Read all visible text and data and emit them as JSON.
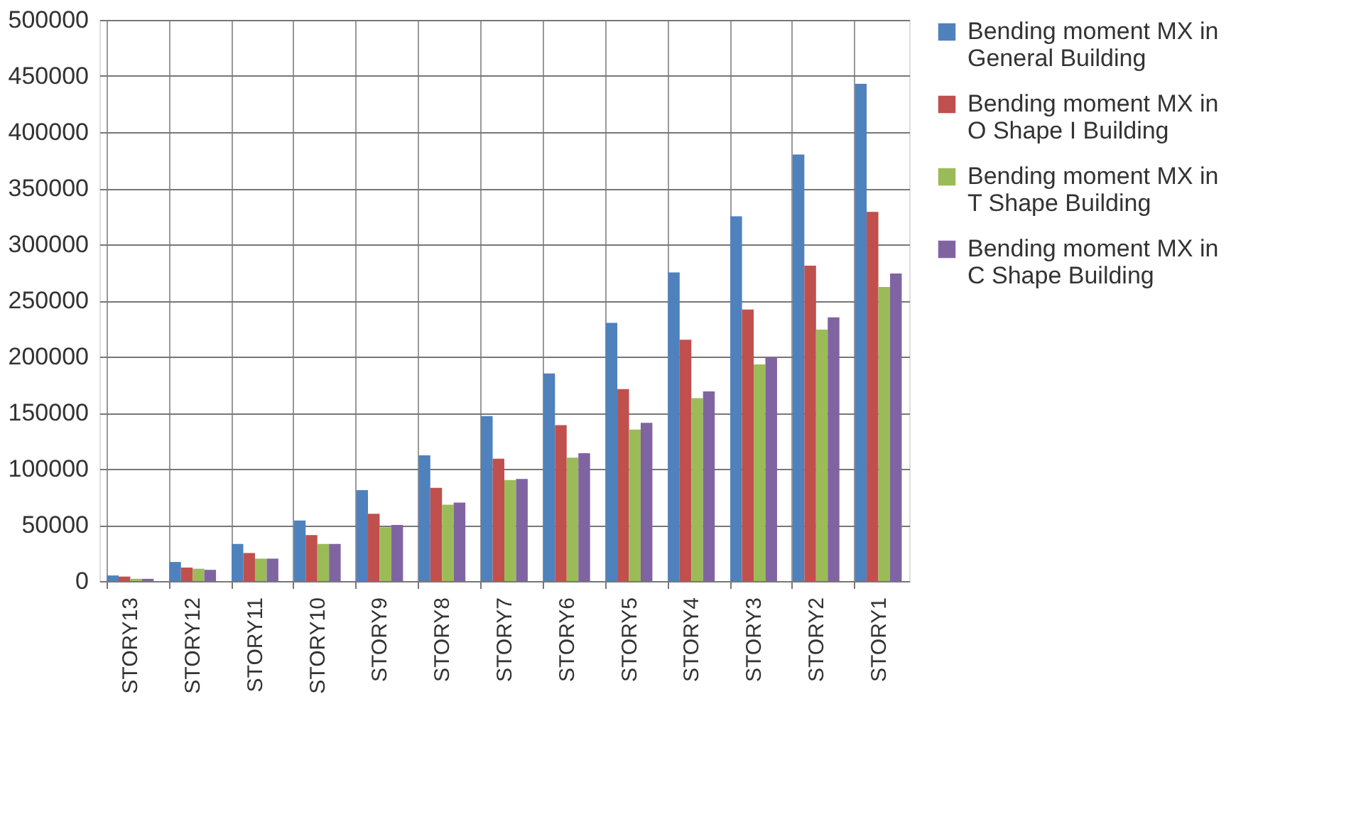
{
  "chart_data": {
    "type": "bar",
    "categories": [
      "STORY13",
      "STORY12",
      "STORY11",
      "STORY10",
      "STORY9",
      "STORY8",
      "STORY7",
      "STORY6",
      "STORY5",
      "STORY4",
      "STORY3",
      "STORY2",
      "STORY1"
    ],
    "series": [
      {
        "name": "Bending moment MX in General Building",
        "color": "#4f81bd",
        "values": [
          5000,
          17000,
          33000,
          54000,
          81000,
          112000,
          147000,
          185000,
          230000,
          275000,
          325000,
          380000,
          443000
        ]
      },
      {
        "name": "Bending moment MX in O Shape I Building",
        "color": "#c0504d",
        "values": [
          4000,
          12000,
          25000,
          41000,
          60000,
          83000,
          109000,
          139000,
          171000,
          215000,
          242000,
          281000,
          329000
        ]
      },
      {
        "name": "Bending moment MX in T Shape Building",
        "color": "#9bbb59",
        "values": [
          2000,
          11000,
          20000,
          33000,
          48000,
          68000,
          90000,
          110000,
          135000,
          163000,
          193000,
          224000,
          262000
        ]
      },
      {
        "name": "Bending moment MX in C Shape Building",
        "color": "#8064a2",
        "values": [
          2000,
          10000,
          20000,
          33000,
          50000,
          70000,
          91000,
          114000,
          141000,
          169000,
          199000,
          235000,
          274000
        ]
      }
    ],
    "ylim": [
      0,
      500000
    ],
    "yticks": [
      0,
      50000,
      100000,
      150000,
      200000,
      250000,
      300000,
      350000,
      400000,
      450000,
      500000
    ],
    "grid": true,
    "legend": "right"
  }
}
